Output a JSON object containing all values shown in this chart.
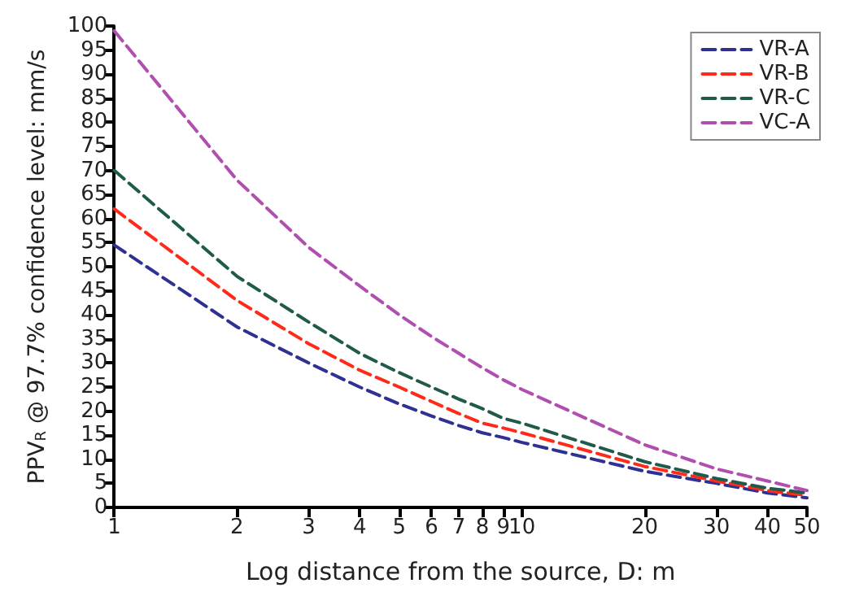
{
  "chart_data": {
    "type": "line",
    "xlabel": "Log distance from the source, D: m",
    "ylabel": "PPV$_{R}$ @ 97.7% confidence level: mm/s",
    "x": [
      1,
      2,
      3,
      4,
      5,
      6,
      7,
      8,
      9,
      10,
      20,
      30,
      40,
      50
    ],
    "series": [
      {
        "name": "VR-A",
        "color": "#2e3192",
        "values": [
          54.5,
          37.5,
          30,
          25,
          21.5,
          19,
          17,
          15.5,
          14.5,
          13.5,
          7.5,
          5,
          3,
          2
        ]
      },
      {
        "name": "VR-B",
        "color": "#ff2a1a",
        "values": [
          62,
          43,
          34,
          28.5,
          25,
          22,
          19.5,
          17.5,
          16.5,
          15.5,
          8.5,
          5.5,
          3.5,
          2.5
        ]
      },
      {
        "name": "VR-C",
        "color": "#1f5a4a",
        "values": [
          70,
          48,
          38.5,
          32,
          28,
          25,
          22.5,
          20.5,
          18.5,
          17.5,
          9.5,
          6,
          4,
          3
        ]
      },
      {
        "name": "VC-A",
        "color": "#b04fb0",
        "values": [
          99,
          68,
          54,
          46,
          40,
          35.5,
          32,
          29,
          26.5,
          24.5,
          13,
          8,
          5.5,
          3.5
        ]
      }
    ],
    "xlim": [
      1,
      50
    ],
    "xticks": [
      1,
      2,
      3,
      4,
      5,
      6,
      7,
      8,
      9,
      10,
      20,
      30,
      40,
      50
    ],
    "ylim": [
      0,
      100
    ],
    "yticks": [
      0,
      5,
      10,
      15,
      20,
      25,
      30,
      35,
      40,
      45,
      50,
      55,
      60,
      65,
      70,
      75,
      80,
      85,
      90,
      95,
      100
    ],
    "log": "x",
    "grid": false,
    "legend": "top right",
    "marker": "none",
    "line_style": "dashed"
  }
}
